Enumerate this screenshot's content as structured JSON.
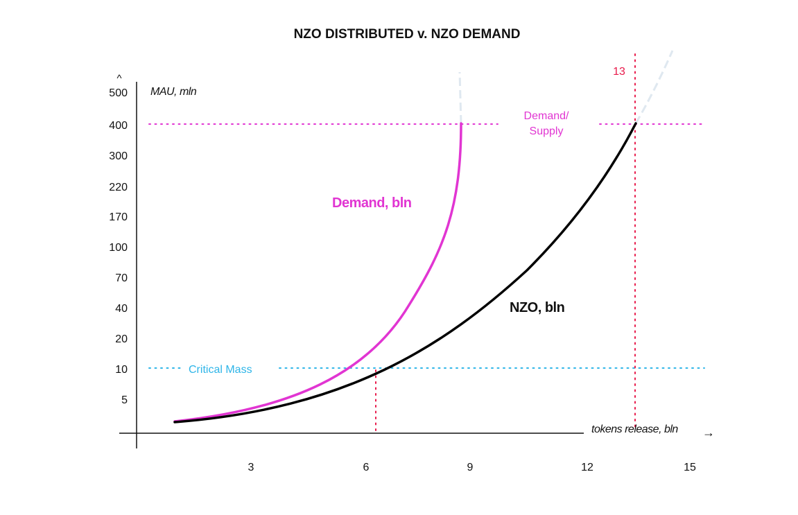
{
  "chart_data": {
    "type": "line",
    "title": "NZO DISTRIBUTED v. NZO DEMAND",
    "ylabel": "MAU, mln",
    "xlabel": "tokens release, bln",
    "y_ticks": [
      "500",
      "400",
      "300",
      "220",
      "170",
      "100",
      "70",
      "40",
      "20",
      "10",
      "5"
    ],
    "x_ticks": [
      "3",
      "6",
      "9",
      "12",
      "15"
    ],
    "y_axis_arrow": "^",
    "x_axis_arrow": "→",
    "series": [
      {
        "name": "Demand, bln",
        "color": "#e135d2",
        "x": [
          1,
          2,
          3,
          4,
          5,
          6,
          7,
          7.5,
          8,
          8.5,
          8.7
        ],
        "y": [
          1,
          2,
          3.5,
          6,
          10,
          20,
          50,
          80,
          150,
          260,
          400
        ],
        "projection_color": "#dfe8f0"
      },
      {
        "name": "NZO, bln",
        "color": "#000000",
        "x": [
          1,
          3,
          5,
          6.3,
          8,
          10,
          12,
          13.3
        ],
        "y": [
          1,
          2.5,
          5,
          10,
          25,
          60,
          170,
          400
        ],
        "projection_color": "#dfe8f0"
      }
    ],
    "reference_lines": {
      "critical_mass": {
        "label": "Critical Mass",
        "y": 10,
        "color": "#2eb5e8"
      },
      "demand_supply": {
        "label_line1": "Demand/",
        "label_line2": "Supply",
        "y": 400,
        "color": "#e135d2"
      },
      "x_13": {
        "label": "13",
        "x": 13.3,
        "color": "#e8194a"
      },
      "x_6": {
        "x": 6.3,
        "color": "#e8194a"
      }
    }
  }
}
